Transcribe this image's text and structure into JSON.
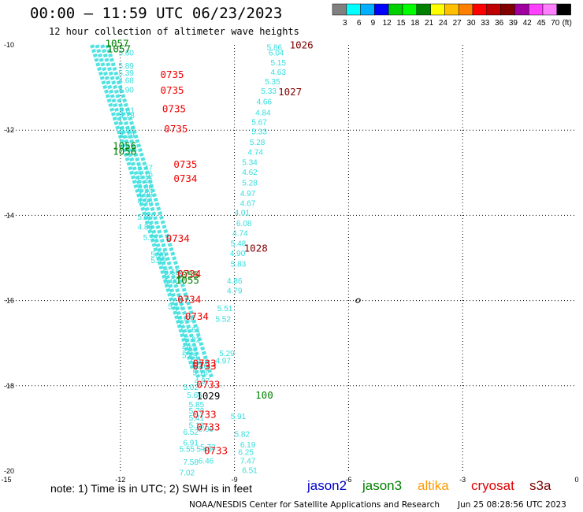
{
  "header": {
    "title": "00:00 — 11:59 UTC 06/23/2023",
    "subtitle": "12 hour collection of altimeter wave heights"
  },
  "color_scale": {
    "colors": [
      "#808080",
      "#00ffff",
      "#00b0ff",
      "#0000ff",
      "#00d000",
      "#00ff00",
      "#008000",
      "#ffff00",
      "#ffc000",
      "#ff8000",
      "#ff0000",
      "#c00000",
      "#800000",
      "#a000a0",
      "#ff40ff",
      "#ff80ff",
      "#000000"
    ],
    "labels": [
      "3",
      "6",
      "9",
      "12",
      "15",
      "18",
      "21",
      "24",
      "27",
      "30",
      "33",
      "36",
      "39",
      "42",
      "45",
      "70",
      "(ft)"
    ]
  },
  "footer": {
    "note": "note: 1) Time is in UTC; 2) SWH is in feet",
    "satellites": [
      {
        "name": "jason2",
        "color": "#0000cc"
      },
      {
        "name": "jason3",
        "color": "#008000"
      },
      {
        "name": "altika",
        "color": "#ff9900"
      },
      {
        "name": "cryosat",
        "color": "#dd0000"
      },
      {
        "name": "s3a",
        "color": "#800000"
      }
    ],
    "credit": "NOAA/NESDIS Center for Satellite Applications and Research",
    "timestamp": "Jun 25 08:28:56 UTC 2023"
  },
  "chart_data": {
    "type": "scatter",
    "xlim": [
      -15,
      0
    ],
    "ylim": [
      -20,
      -10
    ],
    "x_ticks": [
      "-15",
      "-12",
      "-9",
      "-6",
      "-3",
      "0"
    ],
    "y_ticks": [
      "-10",
      "-12",
      "-14",
      "-16",
      "-18",
      "-20"
    ],
    "grid": true,
    "grid_style": "dotted",
    "swh_color": "#33dddd",
    "swh_labels": [
      {
        "x": -12.05,
        "y": -10.25,
        "text": "5.60"
      },
      {
        "x": -12.05,
        "y": -10.55,
        "text": "5.89"
      },
      {
        "x": -12.05,
        "y": -10.72,
        "text": "5.39"
      },
      {
        "x": -12.05,
        "y": -10.9,
        "text": "4.68"
      },
      {
        "x": -12.05,
        "y": -11.12,
        "text": "4.90"
      },
      {
        "x": -12.03,
        "y": -11.6,
        "text": "5.31"
      },
      {
        "x": -12.03,
        "y": -11.72,
        "text": "4.78"
      },
      {
        "x": -12.03,
        "y": -12.05,
        "text": "5.40"
      },
      {
        "x": -12.03,
        "y": -12.18,
        "text": "4.79"
      },
      {
        "x": -11.55,
        "y": -12.95,
        "text": "5.47"
      },
      {
        "x": -11.55,
        "y": -13.1,
        "text": "5.16"
      },
      {
        "x": -11.55,
        "y": -13.25,
        "text": "5.46"
      },
      {
        "x": -11.55,
        "y": -13.4,
        "text": "5.06"
      },
      {
        "x": -11.55,
        "y": -13.58,
        "text": "4.98"
      },
      {
        "x": -11.55,
        "y": -13.73,
        "text": "4.96"
      },
      {
        "x": -11.55,
        "y": -14.1,
        "text": "5.00"
      },
      {
        "x": -11.55,
        "y": -14.33,
        "text": "4.83"
      },
      {
        "x": -11.4,
        "y": -14.58,
        "text": "5.17"
      },
      {
        "x": -11.2,
        "y": -14.98,
        "text": "5.86"
      },
      {
        "x": -11.2,
        "y": -15.12,
        "text": "5.89"
      },
      {
        "x": -10.85,
        "y": -15.4,
        "text": "5.68"
      },
      {
        "x": -10.85,
        "y": -15.6,
        "text": "5.00"
      },
      {
        "x": -10.75,
        "y": -16.2,
        "text": "5.17"
      },
      {
        "x": -10.5,
        "y": -16.5,
        "text": "5.43"
      },
      {
        "x": -10.3,
        "y": -16.75,
        "text": "4.61"
      },
      {
        "x": -10.3,
        "y": -16.98,
        "text": "5.02"
      },
      {
        "x": -10.38,
        "y": -17.2,
        "text": "5.58"
      },
      {
        "x": -10.38,
        "y": -17.35,
        "text": "5.49"
      },
      {
        "x": -10.1,
        "y": -17.6,
        "text": "5.16"
      },
      {
        "x": -10.1,
        "y": -17.75,
        "text": "5.18"
      },
      {
        "x": -10.05,
        "y": -17.95,
        "text": "4.97"
      },
      {
        "x": -10.35,
        "y": -18.1,
        "text": "5.02"
      },
      {
        "x": -10.25,
        "y": -18.28,
        "text": "5.66"
      },
      {
        "x": -10.2,
        "y": -18.5,
        "text": "5.85"
      },
      {
        "x": -10.2,
        "y": -18.65,
        "text": "5.73"
      },
      {
        "x": -10.2,
        "y": -18.82,
        "text": "5.41"
      },
      {
        "x": -10.2,
        "y": -18.99,
        "text": "5.13"
      },
      {
        "x": -9.95,
        "y": -19.08,
        "text": "5.99"
      },
      {
        "x": -10.35,
        "y": -19.15,
        "text": "6.52"
      },
      {
        "x": -10.35,
        "y": -19.4,
        "text": "6.91"
      },
      {
        "x": -10.45,
        "y": -19.55,
        "text": "5.55"
      },
      {
        "x": -10.0,
        "y": -19.55,
        "text": "5.46"
      },
      {
        "x": -9.9,
        "y": -19.5,
        "text": "5.72"
      },
      {
        "x": -10.35,
        "y": -19.85,
        "text": "7.58"
      },
      {
        "x": -9.95,
        "y": -19.82,
        "text": "6.46"
      },
      {
        "x": -10.45,
        "y": -20.1,
        "text": "7.02"
      },
      {
        "x": -8.15,
        "y": -10.12,
        "text": "5.86"
      },
      {
        "x": -8.1,
        "y": -10.25,
        "text": "6.04"
      },
      {
        "x": -8.05,
        "y": -10.48,
        "text": "5.15"
      },
      {
        "x": -8.05,
        "y": -10.7,
        "text": "4.63"
      },
      {
        "x": -8.2,
        "y": -10.92,
        "text": "5.35"
      },
      {
        "x": -8.3,
        "y": -11.15,
        "text": "5.33"
      },
      {
        "x": -8.42,
        "y": -11.4,
        "text": "4.66"
      },
      {
        "x": -8.45,
        "y": -11.65,
        "text": "4.84"
      },
      {
        "x": -8.55,
        "y": -11.88,
        "text": "5.67"
      },
      {
        "x": -8.55,
        "y": -12.1,
        "text": "5.33"
      },
      {
        "x": -8.6,
        "y": -12.35,
        "text": "5.28"
      },
      {
        "x": -8.65,
        "y": -12.58,
        "text": "4.74"
      },
      {
        "x": -8.8,
        "y": -12.82,
        "text": "5.34"
      },
      {
        "x": -8.8,
        "y": -13.05,
        "text": "4.62"
      },
      {
        "x": -8.8,
        "y": -13.3,
        "text": "5.28"
      },
      {
        "x": -8.85,
        "y": -13.55,
        "text": "4.97"
      },
      {
        "x": -8.85,
        "y": -13.78,
        "text": "4.67"
      },
      {
        "x": -9.0,
        "y": -14.0,
        "text": "4.01"
      },
      {
        "x": -8.95,
        "y": -14.25,
        "text": "6.08"
      },
      {
        "x": -9.05,
        "y": -14.48,
        "text": "4.74"
      },
      {
        "x": -9.1,
        "y": -14.72,
        "text": "5.48"
      },
      {
        "x": -9.12,
        "y": -14.95,
        "text": "4.90"
      },
      {
        "x": -9.1,
        "y": -15.2,
        "text": "5.83"
      },
      {
        "x": -9.2,
        "y": -15.6,
        "text": "4.86"
      },
      {
        "x": -9.2,
        "y": -15.83,
        "text": "4.79"
      },
      {
        "x": -9.45,
        "y": -16.25,
        "text": "5.51"
      },
      {
        "x": -9.5,
        "y": -16.5,
        "text": "5.52"
      },
      {
        "x": -9.4,
        "y": -17.3,
        "text": "5.29"
      },
      {
        "x": -9.5,
        "y": -17.48,
        "text": "4.97"
      },
      {
        "x": -9.1,
        "y": -18.78,
        "text": "5.91"
      },
      {
        "x": -9.0,
        "y": -19.2,
        "text": "5.82"
      },
      {
        "x": -8.85,
        "y": -19.45,
        "text": "6.19"
      },
      {
        "x": -8.9,
        "y": -19.62,
        "text": "6.25"
      },
      {
        "x": -8.85,
        "y": -19.82,
        "text": "7.47"
      },
      {
        "x": -8.8,
        "y": -20.05,
        "text": "6.51"
      }
    ],
    "swh_tracks": [
      {
        "x1": -12.35,
        "y1": -10.0,
        "x2": -9.6,
        "y2": -17.8
      },
      {
        "x1": -12.48,
        "y1": -10.0,
        "x2": -9.8,
        "y2": -17.8
      },
      {
        "x1": -12.62,
        "y1": -10.0,
        "x2": -9.95,
        "y2": -17.8
      },
      {
        "x1": -12.75,
        "y1": -10.0,
        "x2": -10.1,
        "y2": -17.6
      }
    ],
    "pass_labels": [
      {
        "x": -12.4,
        "y": -10.05,
        "text": "1057",
        "color": "#008000"
      },
      {
        "x": -12.35,
        "y": -10.18,
        "text": "1057",
        "color": "#008000"
      },
      {
        "x": -12.2,
        "y": -12.45,
        "text": "1056",
        "color": "#008000"
      },
      {
        "x": -12.2,
        "y": -12.58,
        "text": "1056",
        "color": "#008000"
      },
      {
        "x": -10.55,
        "y": -15.48,
        "text": "1055",
        "color": "#008000"
      },
      {
        "x": -10.55,
        "y": -15.6,
        "text": "1055",
        "color": "#008000"
      },
      {
        "x": -8.45,
        "y": -18.3,
        "text": "100",
        "color": "#008000"
      },
      {
        "x": -10.95,
        "y": -10.78,
        "text": "0735",
        "color": "#ee0000"
      },
      {
        "x": -10.95,
        "y": -11.15,
        "text": "0735",
        "color": "#ee0000"
      },
      {
        "x": -10.9,
        "y": -11.58,
        "text": "0735",
        "color": "#ee0000"
      },
      {
        "x": -10.85,
        "y": -12.05,
        "text": "0735",
        "color": "#ee0000"
      },
      {
        "x": -10.6,
        "y": -12.88,
        "text": "0735",
        "color": "#ee0000"
      },
      {
        "x": -10.6,
        "y": -13.22,
        "text": "0734",
        "color": "#ee0000"
      },
      {
        "x": -10.8,
        "y": -14.62,
        "text": "0734",
        "color": "#ee0000"
      },
      {
        "x": -10.5,
        "y": -15.45,
        "text": "0734",
        "color": "#ee0000"
      },
      {
        "x": -10.5,
        "y": -16.05,
        "text": "0734",
        "color": "#ee0000"
      },
      {
        "x": -10.3,
        "y": -16.45,
        "text": "0734",
        "color": "#ee0000"
      },
      {
        "x": -10.1,
        "y": -17.55,
        "text": "0733",
        "color": "#ee0000"
      },
      {
        "x": -10.1,
        "y": -17.62,
        "text": "0733",
        "color": "#ee0000"
      },
      {
        "x": -10.0,
        "y": -18.05,
        "text": "0733",
        "color": "#ee0000"
      },
      {
        "x": -10.1,
        "y": -18.75,
        "text": "0733",
        "color": "#ee0000"
      },
      {
        "x": -10.0,
        "y": -19.05,
        "text": "0733",
        "color": "#ee0000"
      },
      {
        "x": -9.8,
        "y": -19.6,
        "text": "0733",
        "color": "#ee0000"
      },
      {
        "x": -7.55,
        "y": -10.08,
        "text": "1026",
        "color": "#800000"
      },
      {
        "x": -7.85,
        "y": -11.18,
        "text": "1027",
        "color": "#800000"
      },
      {
        "x": -8.75,
        "y": -14.85,
        "text": "1028",
        "color": "#800000"
      },
      {
        "x": -10.0,
        "y": -18.32,
        "text": "1029",
        "color": "#000000"
      }
    ]
  }
}
